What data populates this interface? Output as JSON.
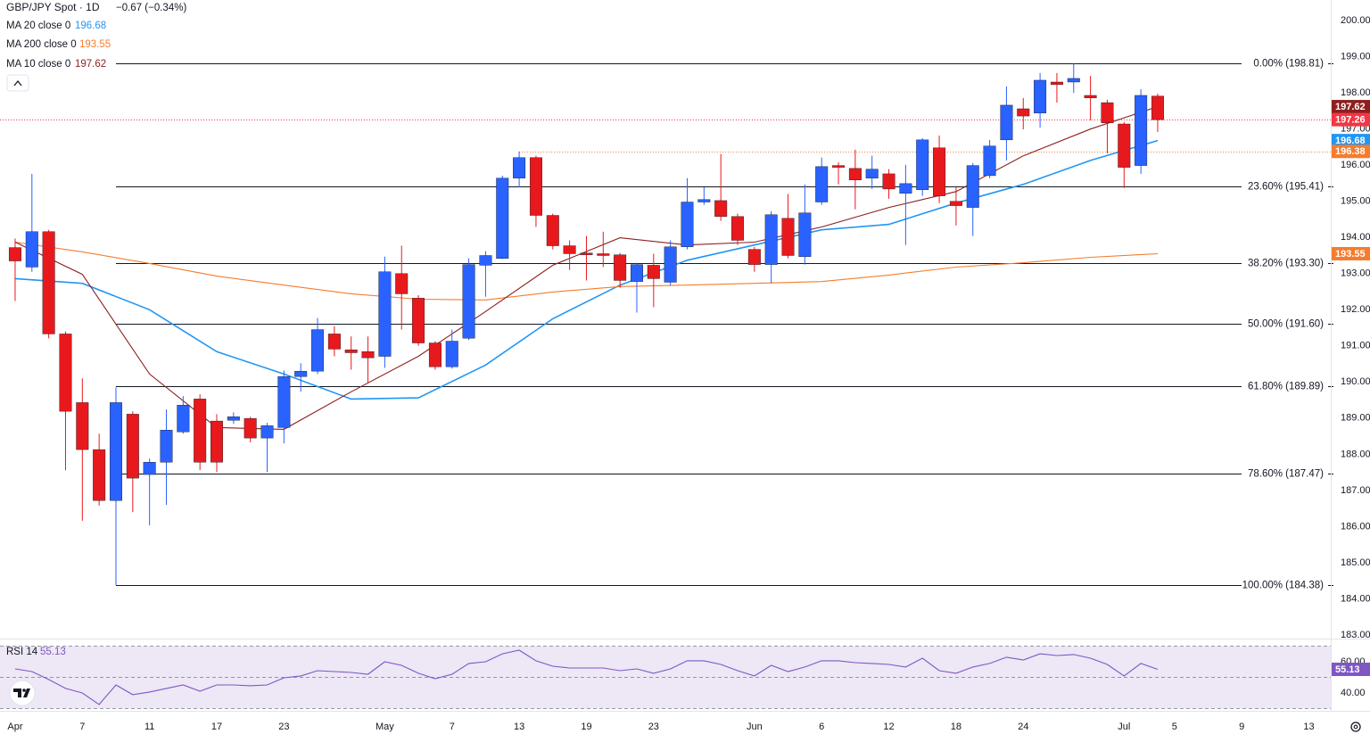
{
  "chart_data": [
    {
      "type": "candlestick",
      "title": "GBP/JPY Spot · 1D",
      "subtitle": "−0.67 (−0.34%)",
      "open": [
        193.72,
        193.18,
        194.16,
        191.33,
        189.43,
        188.13,
        186.72,
        189.11,
        187.44,
        187.78,
        188.62,
        189.53,
        188.92,
        188.94,
        188.99,
        188.45,
        188.74,
        190.15,
        190.3,
        191.33,
        190.89,
        190.84,
        190.71,
        193.0,
        192.32,
        191.08,
        190.42,
        191.21,
        193.23,
        193.42,
        195.64,
        196.21,
        194.61,
        193.77,
        193.57,
        193.55,
        193.52,
        192.78,
        193.23,
        192.76,
        193.74,
        194.98,
        195.02,
        194.58,
        193.67,
        193.25,
        194.53,
        193.47,
        194.98,
        195.99,
        195.91,
        195.64,
        195.76,
        195.22,
        195.32,
        196.48,
        195.0,
        194.83,
        195.71,
        196.7,
        197.56,
        197.44,
        198.3,
        198.3,
        197.93,
        197.73,
        197.14,
        195.99,
        197.91
      ],
      "high": [
        193.97,
        195.76,
        194.21,
        191.4,
        190.1,
        188.57,
        189.85,
        189.19,
        187.88,
        189.24,
        189.61,
        189.66,
        189.11,
        189.16,
        189.04,
        188.87,
        190.32,
        190.52,
        191.77,
        191.55,
        191.26,
        191.26,
        193.47,
        193.77,
        192.4,
        191.13,
        191.45,
        193.42,
        193.62,
        195.71,
        196.38,
        196.26,
        194.66,
        193.92,
        194.04,
        194.16,
        193.57,
        193.3,
        193.55,
        193.92,
        195.64,
        195.39,
        196.31,
        194.66,
        193.74,
        194.73,
        195.2,
        195.47,
        196.21,
        196.08,
        196.43,
        196.26,
        195.89,
        196.01,
        196.75,
        196.82,
        195.39,
        196.06,
        196.7,
        198.18,
        197.86,
        198.55,
        198.55,
        198.81,
        198.47,
        197.81,
        197.19,
        198.1,
        197.98
      ],
      "low": [
        192.24,
        193.05,
        191.21,
        187.56,
        186.16,
        186.58,
        184.38,
        186.4,
        186.03,
        186.6,
        188.57,
        187.56,
        187.51,
        188.84,
        188.33,
        187.51,
        188.3,
        189.73,
        190.22,
        190.71,
        190.34,
        189.98,
        190.39,
        191.45,
        191.0,
        190.34,
        190.37,
        191.16,
        192.36,
        193.4,
        195.39,
        194.29,
        193.67,
        193.1,
        192.81,
        193.18,
        192.61,
        191.92,
        192.07,
        192.68,
        193.67,
        194.9,
        194.46,
        193.79,
        193.05,
        192.73,
        193.42,
        193.25,
        194.9,
        195.47,
        194.78,
        195.34,
        195.07,
        193.79,
        195.15,
        194.95,
        194.33,
        194.04,
        195.64,
        196.13,
        196.99,
        197.04,
        197.73,
        198.0,
        197.24,
        196.33,
        195.37,
        195.76,
        196.92
      ],
      "close": [
        193.35,
        194.16,
        191.33,
        189.19,
        188.13,
        186.72,
        189.43,
        187.34,
        187.78,
        188.67,
        189.36,
        187.78,
        187.78,
        189.04,
        188.45,
        188.79,
        190.15,
        190.3,
        191.45,
        190.91,
        190.81,
        190.67,
        193.05,
        192.44,
        191.08,
        190.42,
        191.13,
        193.25,
        193.5,
        195.64,
        196.21,
        194.61,
        193.77,
        193.55,
        193.52,
        193.5,
        192.81,
        193.25,
        192.86,
        193.74,
        194.98,
        195.05,
        194.58,
        193.92,
        193.25,
        194.63,
        193.5,
        194.68,
        195.96,
        195.94,
        195.59,
        195.89,
        195.34,
        195.49,
        196.7,
        195.15,
        194.88,
        195.99,
        196.53,
        197.66,
        197.36,
        198.35,
        198.23,
        198.4,
        197.86,
        197.17,
        195.94,
        197.93,
        197.26
      ],
      "up_color": "#2962ff",
      "down_color": "#e8191c",
      "last_color": "#f23645",
      "series": [
        {
          "name": "MA 20 close 0",
          "color": "#2196f3",
          "x": [
            0,
            4,
            8,
            12,
            16,
            20,
            24,
            28,
            32,
            36,
            40,
            44,
            48,
            52,
            56,
            60,
            64,
            68
          ],
          "values": [
            192.86,
            192.73,
            192.0,
            190.84,
            190.22,
            189.53,
            189.56,
            190.47,
            191.75,
            192.68,
            193.37,
            193.79,
            194.21,
            194.36,
            194.95,
            195.47,
            196.13,
            196.68
          ]
        },
        {
          "name": "MA 200 close 0",
          "color": "#f57c2e",
          "x": [
            0,
            4,
            8,
            12,
            16,
            20,
            24,
            28,
            32,
            36,
            40,
            44,
            48,
            52,
            56,
            60,
            64,
            68
          ],
          "values": [
            193.87,
            193.6,
            193.28,
            192.93,
            192.68,
            192.44,
            192.29,
            192.27,
            192.49,
            192.64,
            192.68,
            192.73,
            192.78,
            192.96,
            193.18,
            193.3,
            193.45,
            193.55
          ]
        },
        {
          "name": "MA 10 close 0",
          "color": "#8d1f1f",
          "x": [
            0,
            4,
            8,
            12,
            16,
            20,
            24,
            28,
            32,
            36,
            40,
            44,
            48,
            52,
            56,
            60,
            64,
            68
          ],
          "values": [
            193.87,
            192.98,
            190.22,
            188.74,
            188.69,
            189.73,
            190.71,
            191.95,
            193.23,
            193.99,
            193.79,
            193.87,
            194.29,
            194.83,
            195.27,
            196.26,
            197.0,
            197.62
          ]
        }
      ],
      "fib_levels": [
        {
          "value": 198.81,
          "label": "0.00% (198.81)"
        },
        {
          "value": 195.41,
          "label": "23.60% (195.41)"
        },
        {
          "value": 193.3,
          "label": "38.20% (193.30)"
        },
        {
          "value": 191.6,
          "label": "50.00% (191.60)"
        },
        {
          "value": 189.89,
          "label": "61.80% (189.89)"
        },
        {
          "value": 187.47,
          "label": "78.60% (187.47)"
        },
        {
          "value": 184.38,
          "label": "100.00% (184.38)"
        }
      ],
      "fib_color": "#131722",
      "resistance": 196.38,
      "resistance_color": "#f57c2e",
      "xlim": [
        -0.9,
        78.3
      ],
      "ylim": [
        182.95,
        200.57
      ],
      "yticks": [
        {
          "value": 200,
          "label": "200.00"
        },
        {
          "value": 199,
          "label": "199.00"
        },
        {
          "value": 198,
          "label": "198.00"
        },
        {
          "value": 197,
          "label": "197.00"
        },
        {
          "value": 196,
          "label": "196.00"
        },
        {
          "value": 195,
          "label": "195.00"
        },
        {
          "value": 194,
          "label": "194.00"
        },
        {
          "value": 193,
          "label": "193.00"
        },
        {
          "value": 192,
          "label": "192.00"
        },
        {
          "value": 191,
          "label": "191.00"
        },
        {
          "value": 190,
          "label": "190.00"
        },
        {
          "value": 189,
          "label": "189.00"
        },
        {
          "value": 188,
          "label": "188.00"
        },
        {
          "value": 187,
          "label": "187.00"
        },
        {
          "value": 186,
          "label": "186.00"
        },
        {
          "value": 185,
          "label": "185.00"
        },
        {
          "value": 184,
          "label": "184.00"
        },
        {
          "value": 183,
          "label": "183.00"
        }
      ],
      "xticks": [
        {
          "value": 0,
          "label": "Apr"
        },
        {
          "value": 4,
          "label": "7"
        },
        {
          "value": 8,
          "label": "11"
        },
        {
          "value": 12,
          "label": "17"
        },
        {
          "value": 16,
          "label": "23"
        },
        {
          "value": 22,
          "label": "May"
        },
        {
          "value": 26,
          "label": "7"
        },
        {
          "value": 30,
          "label": "13"
        },
        {
          "value": 34,
          "label": "19"
        },
        {
          "value": 38,
          "label": "23"
        },
        {
          "value": 44,
          "label": "Jun"
        },
        {
          "value": 48,
          "label": "6"
        },
        {
          "value": 52,
          "label": "12"
        },
        {
          "value": 56,
          "label": "18"
        },
        {
          "value": 60,
          "label": "24"
        },
        {
          "value": 66,
          "label": "Jul"
        },
        {
          "value": 69,
          "label": "5"
        },
        {
          "value": 73,
          "label": "9"
        },
        {
          "value": 77,
          "label": "13"
        }
      ]
    },
    {
      "type": "line",
      "series": [
        {
          "name": "RSI 14",
          "color": "#7e57c2",
          "values": [
            55.4,
            53.7,
            48.6,
            42.9,
            40.0,
            32.6,
            45.1,
            38.9,
            40.6,
            42.9,
            45.1,
            41.1,
            45.1,
            45.1,
            44.6,
            45.1,
            49.7,
            50.9,
            54.3,
            53.7,
            53.1,
            52.0,
            60.0,
            57.7,
            52.6,
            49.1,
            52.0,
            58.9,
            60.0,
            65.1,
            67.4,
            60.6,
            57.1,
            56.0,
            56.0,
            56.0,
            54.3,
            55.4,
            52.6,
            55.4,
            60.6,
            60.6,
            58.3,
            54.3,
            50.9,
            57.7,
            53.7,
            56.6,
            60.6,
            60.6,
            59.4,
            58.9,
            58.3,
            56.6,
            62.3,
            54.3,
            52.6,
            56.6,
            58.9,
            62.9,
            61.1,
            65.1,
            64.0,
            64.6,
            62.3,
            58.3,
            50.9,
            58.9,
            55.13
          ]
        }
      ],
      "bands": [
        70,
        50,
        30
      ],
      "band_fill": "#ede7f6",
      "xlim": [
        -0.9,
        78.3
      ],
      "ylim": [
        29.7,
        73.7
      ],
      "yticks": [
        {
          "value": 60,
          "label": "60.00"
        },
        {
          "value": 40,
          "label": "40.00"
        }
      ]
    }
  ]
}
